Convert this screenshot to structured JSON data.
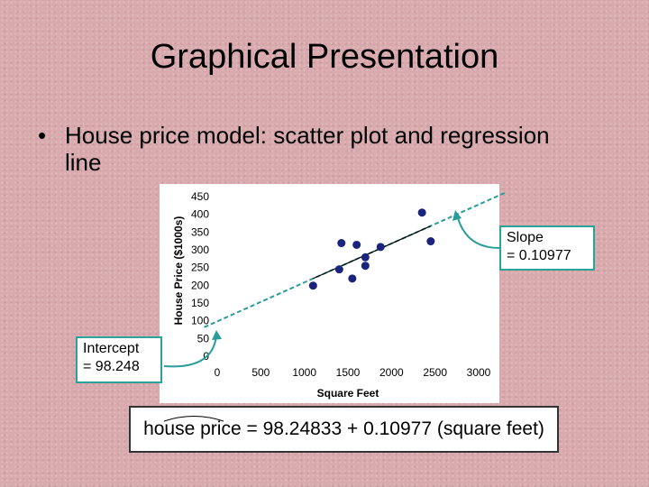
{
  "slide": {
    "title": "Graphical Presentation",
    "bullet": "House price model:  scatter plot and regression line"
  },
  "callouts": {
    "intercept": [
      "Intercept",
      "= 98.248"
    ],
    "slope": [
      "Slope",
      "= 0.10977"
    ]
  },
  "equation": "house price = 98.24833 + 0.10977 (square feet)",
  "colors": {
    "point": "#1a237e",
    "regression_line": "#000000",
    "extension_line": "#2a9d9a",
    "callout_border": "#2aa39b"
  },
  "chart_data": {
    "type": "scatter",
    "xlabel": "Square Feet",
    "ylabel": "House Price ($1000s)",
    "xlim": [
      0,
      3000
    ],
    "ylim": [
      0,
      450
    ],
    "xticks": [
      0,
      500,
      1000,
      1500,
      2000,
      2500,
      3000
    ],
    "yticks": [
      0,
      50,
      100,
      150,
      200,
      250,
      300,
      350,
      400,
      450
    ],
    "points": [
      {
        "x": 1100,
        "y": 199
      },
      {
        "x": 1400,
        "y": 245
      },
      {
        "x": 1425,
        "y": 319
      },
      {
        "x": 1550,
        "y": 219
      },
      {
        "x": 1600,
        "y": 314
      },
      {
        "x": 1700,
        "y": 255
      },
      {
        "x": 1700,
        "y": 279
      },
      {
        "x": 1875,
        "y": 308
      },
      {
        "x": 2350,
        "y": 405
      },
      {
        "x": 2450,
        "y": 324
      }
    ],
    "regression": {
      "intercept": 98.24833,
      "slope": 0.10977
    },
    "grid": false
  }
}
